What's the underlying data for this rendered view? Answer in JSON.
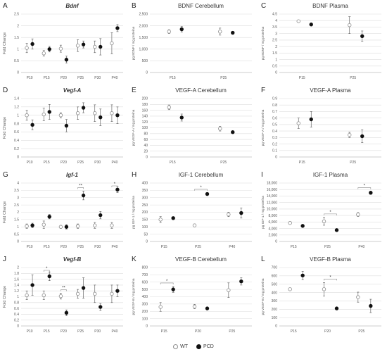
{
  "legend": [
    {
      "name": "WT",
      "fill": "#ffffff",
      "stroke": "#8c8c8c"
    },
    {
      "name": "PCD",
      "fill": "#111111",
      "stroke": "#111111"
    }
  ],
  "chart_data": [
    {
      "letter": "A",
      "title": "Bdnf",
      "italic": true,
      "type": "scatter",
      "ylabel": "Fold Change",
      "ylim": [
        0,
        2.5
      ],
      "yticks": [
        "0",
        "0.5",
        "1",
        "1.5",
        "2",
        "2.5"
      ],
      "categories": [
        "P10",
        "P15",
        "P20",
        "P25",
        "P30",
        "P40"
      ],
      "series": [
        {
          "name": "WT",
          "values": [
            1.05,
            0.82,
            1.02,
            1.15,
            1.1,
            1.25
          ],
          "errors": [
            0.2,
            0.12,
            0.15,
            0.25,
            0.25,
            0.45
          ]
        },
        {
          "name": "PCD",
          "values": [
            1.22,
            1.0,
            0.55,
            1.2,
            1.1,
            1.9
          ],
          "errors": [
            0.22,
            0.12,
            0.15,
            0.15,
            0.35,
            0.15
          ]
        }
      ],
      "significance": []
    },
    {
      "letter": "B",
      "title": "BDNF Cerebellum",
      "italic": false,
      "type": "scatter",
      "ylabel": "pg BDNF / mg proteína",
      "ylim": [
        0,
        2500
      ],
      "yticks": [
        "0",
        "500",
        "1,000",
        "1,500",
        "2,000",
        "2,500"
      ],
      "categories": [
        "P15",
        "P25"
      ],
      "series": [
        {
          "name": "WT",
          "values": [
            1750,
            1750
          ],
          "errors": [
            80,
            150
          ]
        },
        {
          "name": "PCD",
          "values": [
            1850,
            1700
          ],
          "errors": [
            120,
            60
          ]
        }
      ],
      "significance": []
    },
    {
      "letter": "C",
      "title": "BDNF Plasma",
      "italic": false,
      "type": "scatter",
      "ylabel": "pg BDNF / mg proteína",
      "ylim": [
        0,
        4.5
      ],
      "yticks": [
        "0",
        "0.5",
        "1",
        "1.5",
        "2",
        "2.5",
        "3",
        "3.5",
        "4",
        "4.5"
      ],
      "categories": [
        "P15",
        "P25"
      ],
      "series": [
        {
          "name": "WT",
          "values": [
            3.95,
            3.65
          ],
          "errors": [
            0.05,
            0.65
          ]
        },
        {
          "name": "PCD",
          "values": [
            3.7,
            2.8
          ],
          "errors": [
            0.05,
            0.4
          ]
        }
      ],
      "significance": []
    },
    {
      "letter": "D",
      "title": "Vegf-A",
      "italic": true,
      "type": "scatter",
      "ylabel": "Fold Change",
      "ylim": [
        0,
        1.4
      ],
      "yticks": [
        "0",
        "0.2",
        "0.4",
        "0.6",
        "0.8",
        "1",
        "1.2",
        "1.4"
      ],
      "categories": [
        "P10",
        "P15",
        "P20",
        "P25",
        "P30",
        "P40"
      ],
      "series": [
        {
          "name": "WT",
          "values": [
            1.0,
            1.02,
            1.0,
            1.05,
            1.05,
            1.05
          ],
          "errors": [
            0.12,
            0.15,
            0.06,
            0.15,
            0.2,
            0.2
          ]
        },
        {
          "name": "PCD",
          "values": [
            0.77,
            1.08,
            0.75,
            1.18,
            0.95,
            1.0
          ],
          "errors": [
            0.12,
            0.18,
            0.15,
            0.12,
            0.2,
            0.2
          ]
        }
      ],
      "significance": []
    },
    {
      "letter": "E",
      "title": "VEGF-A Cerebellum",
      "italic": false,
      "type": "scatter",
      "ylabel": "pg VEGF-A / mg proteína",
      "ylim": [
        0,
        200
      ],
      "yticks": [
        "0",
        "20",
        "40",
        "60",
        "80",
        "100",
        "120",
        "140",
        "160",
        "180",
        "200"
      ],
      "categories": [
        "P15",
        "P25"
      ],
      "series": [
        {
          "name": "WT",
          "values": [
            170,
            97
          ],
          "errors": [
            8,
            8
          ]
        },
        {
          "name": "PCD",
          "values": [
            135,
            85
          ],
          "errors": [
            12,
            3
          ]
        }
      ],
      "significance": []
    },
    {
      "letter": "F",
      "title": "VEGF-A Plasma",
      "italic": false,
      "type": "scatter",
      "ylabel": "pg VEGF-A / mg proteína",
      "ylim": [
        0,
        0.9
      ],
      "yticks": [
        "0",
        "0.1",
        "0.2",
        "0.3",
        "0.4",
        "0.5",
        "0.6",
        "0.7",
        "0.8",
        "0.9"
      ],
      "categories": [
        "P15",
        "P25"
      ],
      "series": [
        {
          "name": "WT",
          "values": [
            0.52,
            0.34
          ],
          "errors": [
            0.08,
            0.04
          ]
        },
        {
          "name": "PCD",
          "values": [
            0.58,
            0.32
          ],
          "errors": [
            0.12,
            0.1
          ]
        }
      ],
      "significance": []
    },
    {
      "letter": "G",
      "title": "Igf-1",
      "italic": true,
      "type": "scatter",
      "ylabel": "Fold Change",
      "ylim": [
        0,
        4
      ],
      "yticks": [
        "0",
        "0.5",
        "1",
        "1.5",
        "2",
        "2.5",
        "3",
        "3.5",
        "4"
      ],
      "categories": [
        "P10",
        "P15",
        "P20",
        "P25",
        "P30",
        "P40"
      ],
      "series": [
        {
          "name": "WT",
          "values": [
            1.05,
            1.15,
            1.0,
            1.05,
            1.1,
            1.1
          ],
          "errors": [
            0.15,
            0.25,
            0.1,
            0.15,
            0.2,
            0.2
          ]
        },
        {
          "name": "PCD",
          "values": [
            1.1,
            1.7,
            1.0,
            3.15,
            1.8,
            3.55
          ],
          "errors": [
            0.15,
            0.15,
            0.15,
            0.3,
            0.25,
            0.2
          ]
        }
      ],
      "significance": [
        {
          "index": 3,
          "label": "**"
        },
        {
          "index": 5,
          "label": "*"
        }
      ]
    },
    {
      "letter": "H",
      "title": "IGF-1 Cerebellum",
      "italic": false,
      "type": "scatter",
      "ylabel": "pg IGF-1 / mg proteína",
      "ylim": [
        0,
        400
      ],
      "yticks": [
        "0",
        "50",
        "100",
        "150",
        "200",
        "250",
        "300",
        "350",
        "400"
      ],
      "categories": [
        "P15",
        "P25",
        "P40"
      ],
      "series": [
        {
          "name": "WT",
          "values": [
            150,
            110,
            185
          ],
          "errors": [
            20,
            10,
            15
          ]
        },
        {
          "name": "PCD",
          "values": [
            160,
            325,
            195
          ],
          "errors": [
            8,
            8,
            35
          ]
        }
      ],
      "significance": [
        {
          "index": 1,
          "label": "*"
        }
      ]
    },
    {
      "letter": "I",
      "title": "IGF-1 Plasma",
      "italic": false,
      "type": "scatter",
      "ylabel": "pg IGF-1 / mg proteína",
      "ylim": [
        0,
        18000
      ],
      "yticks": [
        "0",
        "2,000",
        "4,000",
        "6,000",
        "8,000",
        "10,000",
        "12,000",
        "14,000",
        "16,000",
        "18,000"
      ],
      "categories": [
        "P15",
        "P25",
        "P40"
      ],
      "series": [
        {
          "name": "WT",
          "values": [
            5700,
            6200,
            8300
          ],
          "errors": [
            300,
            1200,
            600
          ]
        },
        {
          "name": "PCD",
          "values": [
            4800,
            3500,
            15000
          ],
          "errors": [
            200,
            200,
            500
          ]
        }
      ],
      "significance": [
        {
          "index": 1,
          "label": "*"
        },
        {
          "index": 2,
          "label": "*"
        }
      ]
    },
    {
      "letter": "J",
      "title": "Vegf-B",
      "italic": true,
      "type": "scatter",
      "ylabel": "Fold Change",
      "ylim": [
        0,
        2
      ],
      "yticks": [
        "0",
        "0.2",
        "0.4",
        "0.6",
        "0.8",
        "1",
        "1.2",
        "1.4",
        "1.6",
        "1.8",
        "2"
      ],
      "categories": [
        "P10",
        "P15",
        "P20",
        "P25",
        "P30",
        "P40"
      ],
      "series": [
        {
          "name": "WT",
          "values": [
            1.05,
            1.05,
            1.02,
            1.1,
            1.1,
            1.1
          ],
          "errors": [
            0.15,
            0.15,
            0.1,
            0.15,
            0.3,
            0.3
          ]
        },
        {
          "name": "PCD",
          "values": [
            1.4,
            1.7,
            0.45,
            1.3,
            0.65,
            1.2
          ],
          "errors": [
            0.35,
            0.15,
            0.1,
            0.35,
            0.12,
            0.2
          ]
        }
      ],
      "significance": [
        {
          "index": 1,
          "label": "*"
        },
        {
          "index": 2,
          "label": "**"
        }
      ]
    },
    {
      "letter": "K",
      "title": "VEGF-B Cerebellum",
      "italic": false,
      "type": "scatter",
      "ylabel": "pg VEGF-B / mg proteína",
      "ylim": [
        0,
        800
      ],
      "yticks": [
        "0",
        "100",
        "200",
        "300",
        "400",
        "500",
        "600",
        "700",
        "800"
      ],
      "categories": [
        "P15",
        "P20",
        "P25"
      ],
      "series": [
        {
          "name": "WT",
          "values": [
            260,
            265,
            490
          ],
          "errors": [
            60,
            30,
            100
          ]
        },
        {
          "name": "PCD",
          "values": [
            500,
            240,
            610
          ],
          "errors": [
            40,
            10,
            50
          ]
        }
      ],
      "significance": [
        {
          "index": 0,
          "label": "*"
        }
      ]
    },
    {
      "letter": "L",
      "title": "VEGF-B Plasma",
      "italic": false,
      "type": "scatter",
      "ylabel": "pg VEGF-B / mg proteína",
      "ylim": [
        0,
        700
      ],
      "yticks": [
        "0",
        "100",
        "200",
        "300",
        "400",
        "500",
        "600",
        "700"
      ],
      "categories": [
        "P15",
        "P20",
        "P25"
      ],
      "series": [
        {
          "name": "WT",
          "values": [
            440,
            440,
            345
          ],
          "errors": [
            15,
            80,
            60
          ]
        },
        {
          "name": "PCD",
          "values": [
            605,
            210,
            240
          ],
          "errors": [
            50,
            10,
            80
          ]
        }
      ],
      "significance": [
        {
          "index": 1,
          "label": "*"
        }
      ]
    }
  ]
}
